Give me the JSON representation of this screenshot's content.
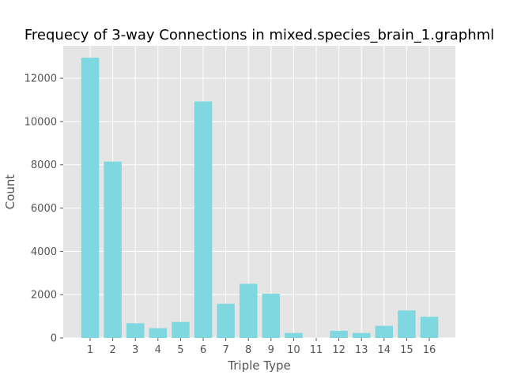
{
  "chart_data": {
    "type": "bar",
    "title": "Frequecy of 3-way Connections in mixed.species_brain_1.graphml",
    "xlabel": "Triple Type",
    "ylabel": "Count",
    "categories": [
      "1",
      "2",
      "3",
      "4",
      "5",
      "6",
      "7",
      "8",
      "9",
      "10",
      "11",
      "12",
      "13",
      "14",
      "15",
      "16"
    ],
    "values": [
      12950,
      8150,
      680,
      450,
      740,
      10930,
      1580,
      2500,
      2040,
      230,
      0,
      330,
      230,
      560,
      1270,
      980
    ],
    "ylim": [
      0,
      13500
    ],
    "yticks": [
      0,
      2000,
      4000,
      6000,
      8000,
      10000,
      12000
    ],
    "grid": true,
    "colors": {
      "bar": "#7fd8e0",
      "plot_background": "#e5e5e5",
      "grid": "#ffffff"
    }
  }
}
